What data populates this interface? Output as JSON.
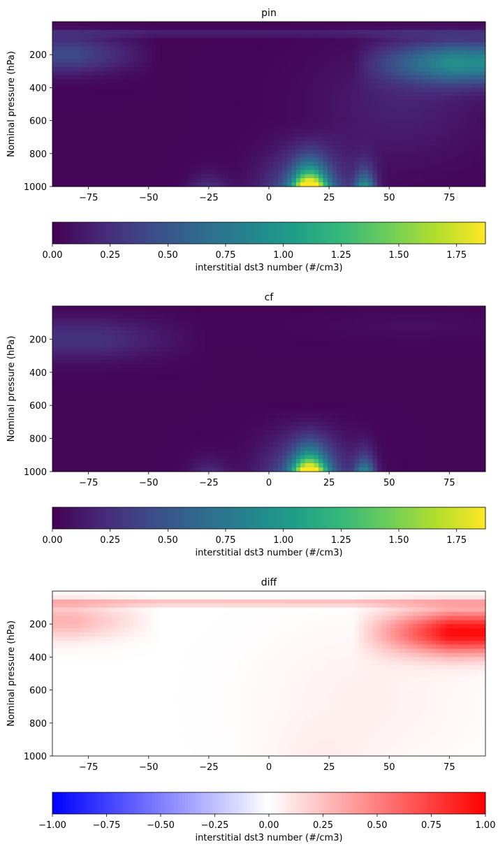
{
  "chart_data": [
    {
      "type": "heatmap",
      "title": "pin",
      "ylabel": "Nominal pressure (hPa)",
      "xlim": [
        -90,
        90
      ],
      "ylim": [
        1000,
        0
      ],
      "xticks": [
        "−75",
        "−50",
        "−25",
        "0",
        "25",
        "50",
        "75"
      ],
      "yticks": [
        "200",
        "400",
        "600",
        "800",
        "1000"
      ],
      "colormap": "viridis",
      "colorbar": {
        "label": "interstitial dst3 number (#/cm3)",
        "range": [
          0,
          1.875
        ],
        "ticks": [
          "0.00",
          "0.25",
          "0.50",
          "0.75",
          "1.00",
          "1.25",
          "1.50",
          "1.75"
        ]
      },
      "features": [
        {
          "kind": "surface dust plume",
          "lat": 17,
          "pressure": 1000,
          "value": 1.85
        },
        {
          "kind": "secondary surface plume",
          "lat": 40,
          "pressure": 1000,
          "value": 0.9
        },
        {
          "kind": "upper-level band",
          "lat": 80,
          "pressure": 250,
          "value": 0.85
        },
        {
          "kind": "upper-level band",
          "lat": -80,
          "pressure": 200,
          "value": 0.4
        }
      ]
    },
    {
      "type": "heatmap",
      "title": "cf",
      "ylabel": "Nominal pressure (hPa)",
      "xlim": [
        -90,
        90
      ],
      "ylim": [
        1000,
        0
      ],
      "xticks": [
        "−75",
        "−50",
        "−25",
        "0",
        "25",
        "50",
        "75"
      ],
      "yticks": [
        "200",
        "400",
        "600",
        "800",
        "1000"
      ],
      "colormap": "viridis",
      "colorbar": {
        "label": "interstitial dst3 number (#/cm3)",
        "range": [
          0,
          1.875
        ],
        "ticks": [
          "0.00",
          "0.25",
          "0.50",
          "0.75",
          "1.00",
          "1.25",
          "1.50",
          "1.75"
        ]
      },
      "features": [
        {
          "kind": "surface dust plume",
          "lat": 17,
          "pressure": 1000,
          "value": 1.8
        },
        {
          "kind": "secondary surface plume",
          "lat": 40,
          "pressure": 1000,
          "value": 0.8
        },
        {
          "kind": "upper-level band",
          "lat": -70,
          "pressure": 200,
          "value": 0.25
        }
      ]
    },
    {
      "type": "heatmap",
      "title": "diff",
      "ylabel": "Nominal pressure (hPa)",
      "xlim": [
        -90,
        90
      ],
      "ylim": [
        1000,
        0
      ],
      "xticks": [
        "−75",
        "−50",
        "−25",
        "0",
        "25",
        "50",
        "75"
      ],
      "yticks": [
        "200",
        "400",
        "600",
        "800",
        "1000"
      ],
      "colormap": "bwr",
      "colorbar": {
        "label": "interstitial dst3 number (#/cm3)",
        "range": [
          -1,
          1
        ],
        "ticks": [
          "−1.00",
          "−0.75",
          "−0.50",
          "−0.25",
          "0.00",
          "0.25",
          "0.50",
          "0.75",
          "1.00"
        ]
      },
      "features": [
        {
          "kind": "positive upper-level band",
          "lat": 85,
          "pressure": 250,
          "value": 0.95
        },
        {
          "kind": "positive upper-level band",
          "lat": -80,
          "pressure": 180,
          "value": 0.3
        }
      ]
    }
  ]
}
